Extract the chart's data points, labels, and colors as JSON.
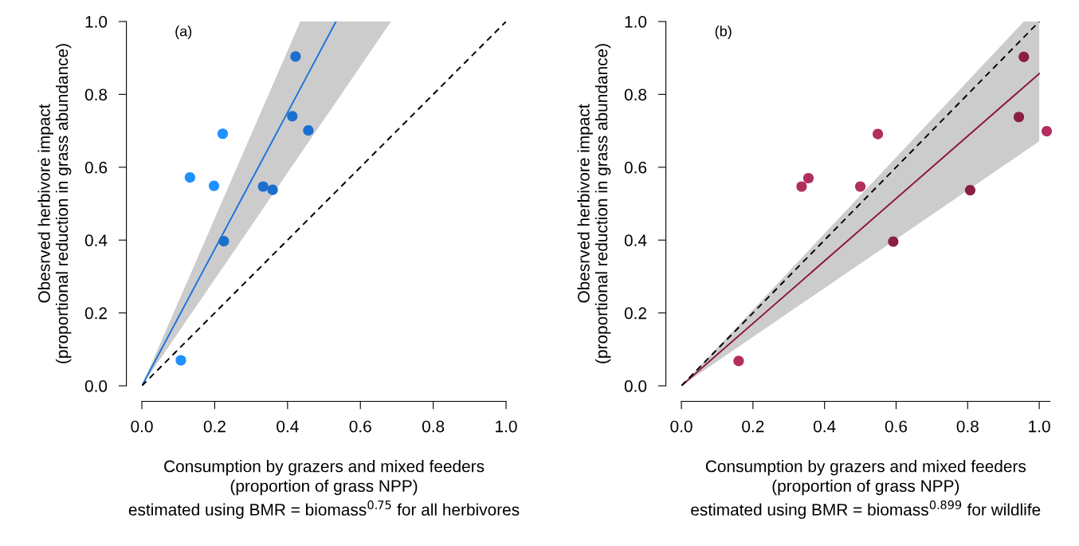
{
  "chart_data": [
    {
      "type": "scatter",
      "annotations": [
        "(a)"
      ],
      "xlabel": "Consumption by grazers and mixed feeders\n(proportion of grass NPP)\nestimated using BMR = biomass$^{0.75}$ for all herbivores",
      "ylabel": "Obesrved herbivore impact\n(proportional reduction in grass abundance)",
      "xlim": [
        0,
        1
      ],
      "ylim": [
        0,
        1
      ],
      "xticks": [
        {
          "value": 0,
          "label": "0.0"
        },
        {
          "value": 0.2,
          "label": "0.2"
        },
        {
          "value": 0.4,
          "label": "0.4"
        },
        {
          "value": 0.6,
          "label": "0.6"
        },
        {
          "value": 0.8,
          "label": "0.8"
        },
        {
          "value": 1,
          "label": "1.0"
        }
      ],
      "yticks": [
        {
          "value": 0,
          "label": "0.0"
        },
        {
          "value": 0.2,
          "label": "0.2"
        },
        {
          "value": 0.4,
          "label": "0.4"
        },
        {
          "value": 0.6,
          "label": "0.6"
        },
        {
          "value": 0.8,
          "label": "0.8"
        },
        {
          "value": 1,
          "label": "1.0"
        }
      ],
      "grid": false,
      "series": [
        {
          "x": [
            0.107,
            0.132,
            0.198,
            0.222,
            0.422,
            0.413,
            0.457,
            0.333,
            0.359,
            0.225
          ],
          "values": [
            0.07,
            0.572,
            0.549,
            0.692,
            0.904,
            0.74,
            0.701,
            0.547,
            0.538,
            0.397
          ],
          "colors": [
            "#1e90ff",
            "#1e90ff",
            "#1e90ff",
            "#1e90ff",
            "#1a6fcf",
            "#1a6fcf",
            "#1a6fcf",
            "#1a6fcf",
            "#1a6fcf",
            "#1a6fcf"
          ]
        },
        {
          "type": "line",
          "color": "#1a73d9",
          "x": [
            0,
            0.435,
            0.533,
            0.684
          ],
          "values": [
            0,
            0.816,
            1.0,
            null
          ],
          "lower": [
            0,
            0.636,
            0.779,
            1.0
          ],
          "upper": [
            0,
            1.0,
            1.0,
            1.0
          ]
        },
        {
          "type": "line",
          "color": "#000000",
          "line_style": "dashed",
          "x": [
            0,
            1
          ],
          "values": [
            0,
            1
          ]
        }
      ]
    },
    {
      "type": "scatter",
      "annotations": [
        "(b)"
      ],
      "xlabel": "Consumption by grazers and mixed feeders\n(proportion of grass NPP)\nestimated using BMR = biomass$^{0.899}$ for wildlife",
      "ylabel": "Obesrved herbivore impact\n(proportional reduction in grass abundance)",
      "xlim": [
        0,
        1.03
      ],
      "ylim": [
        0,
        1
      ],
      "xticks": [
        {
          "value": 0,
          "label": "0.0"
        },
        {
          "value": 0.2,
          "label": "0.2"
        },
        {
          "value": 0.4,
          "label": "0.4"
        },
        {
          "value": 0.6,
          "label": "0.6"
        },
        {
          "value": 0.8,
          "label": "0.8"
        },
        {
          "value": 1,
          "label": "1.0"
        }
      ],
      "yticks": [
        {
          "value": 0,
          "label": "0.0"
        },
        {
          "value": 0.2,
          "label": "0.2"
        },
        {
          "value": 0.4,
          "label": "0.4"
        },
        {
          "value": 0.6,
          "label": "0.6"
        },
        {
          "value": 0.8,
          "label": "0.8"
        },
        {
          "value": 1,
          "label": "1.0"
        }
      ],
      "grid": false,
      "series": [
        {
          "x": [
            0.16,
            0.336,
            0.355,
            0.5,
            0.549,
            0.592,
            0.807,
            0.943,
            0.957,
            1.021
          ],
          "values": [
            0.068,
            0.547,
            0.57,
            0.547,
            0.691,
            0.396,
            0.537,
            0.738,
            0.903,
            0.699
          ],
          "colors": [
            "#b22e5e",
            "#b22e5e",
            "#b22e5e",
            "#b22e5e",
            "#b22e5e",
            "#8b1e45",
            "#8b1e45",
            "#8b1e45",
            "#8b1e45",
            "#b22e5e"
          ]
        },
        {
          "type": "line",
          "color": "#8b1a3f",
          "x": [
            0,
            0.957,
            1
          ],
          "values": [
            0,
            0.82,
            0.857
          ],
          "lower": [
            0,
            0.642,
            0.671
          ],
          "upper": [
            0,
            1.0,
            1.0
          ]
        },
        {
          "type": "line",
          "color": "#000000",
          "line_style": "dashed",
          "x": [
            0,
            1
          ],
          "values": [
            0,
            1
          ]
        }
      ]
    }
  ]
}
